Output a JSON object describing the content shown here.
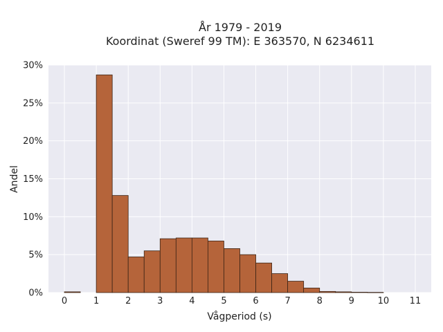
{
  "chart_data": {
    "type": "bar",
    "title": "År 1979 - 2019",
    "subtitle": "Koordinat (Sweref 99 TM): E 363570, N 6234611",
    "xlabel": "Vågperiod (s)",
    "ylabel": "Andel",
    "xlim": [
      -0.5,
      11.5
    ],
    "ylim": [
      0,
      30
    ],
    "x_ticks": [
      0,
      1,
      2,
      3,
      4,
      5,
      6,
      7,
      8,
      9,
      10,
      11
    ],
    "y_ticks": [
      0,
      5,
      10,
      15,
      20,
      25,
      30
    ],
    "y_tick_labels": [
      "0%",
      "5%",
      "10%",
      "15%",
      "20%",
      "25%",
      "30%"
    ],
    "bin_width": 0.5,
    "bins": [
      {
        "x0": 0.0,
        "x1": 0.5,
        "value": 0.1
      },
      {
        "x0": 1.0,
        "x1": 1.5,
        "value": 28.7
      },
      {
        "x0": 1.5,
        "x1": 2.0,
        "value": 12.8
      },
      {
        "x0": 2.0,
        "x1": 2.5,
        "value": 4.7
      },
      {
        "x0": 2.5,
        "x1": 3.0,
        "value": 5.5
      },
      {
        "x0": 3.0,
        "x1": 3.5,
        "value": 7.1
      },
      {
        "x0": 3.5,
        "x1": 4.0,
        "value": 7.2
      },
      {
        "x0": 4.0,
        "x1": 4.5,
        "value": 7.2
      },
      {
        "x0": 4.5,
        "x1": 5.0,
        "value": 6.8
      },
      {
        "x0": 5.0,
        "x1": 5.5,
        "value": 5.8
      },
      {
        "x0": 5.5,
        "x1": 6.0,
        "value": 5.0
      },
      {
        "x0": 6.0,
        "x1": 6.5,
        "value": 3.9
      },
      {
        "x0": 6.5,
        "x1": 7.0,
        "value": 2.5
      },
      {
        "x0": 7.0,
        "x1": 7.5,
        "value": 1.5
      },
      {
        "x0": 7.5,
        "x1": 8.0,
        "value": 0.6
      },
      {
        "x0": 8.0,
        "x1": 8.5,
        "value": 0.15
      },
      {
        "x0": 8.5,
        "x1": 9.0,
        "value": 0.1
      },
      {
        "x0": 9.0,
        "x1": 9.5,
        "value": 0.05
      },
      {
        "x0": 9.5,
        "x1": 10.0,
        "value": 0.03
      }
    ],
    "grid": true,
    "colors": {
      "bar_fill": "#b5643a",
      "bar_edge": "#3b2416",
      "plot_background": "#eaeaf2",
      "grid": "#ffffff"
    }
  }
}
